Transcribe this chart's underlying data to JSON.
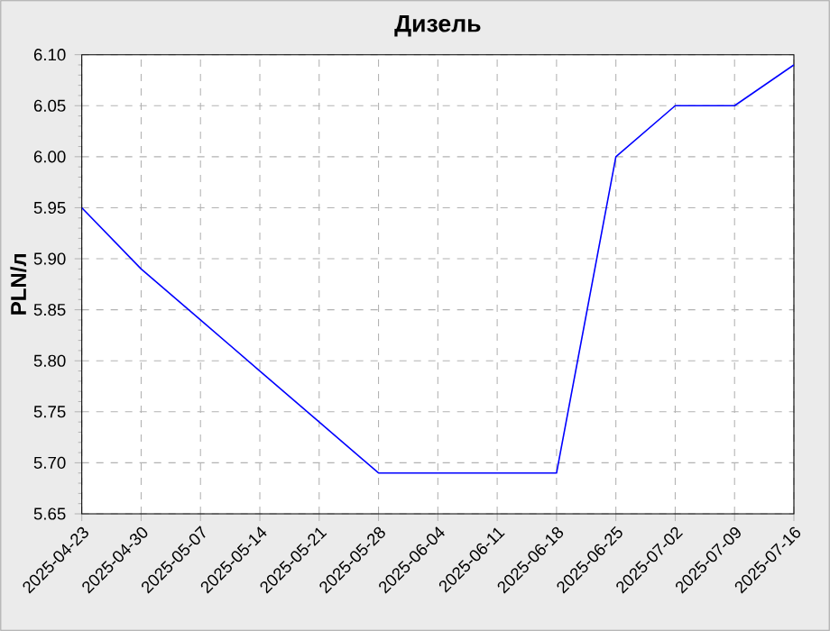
{
  "chart_data": {
    "type": "line",
    "title": "Дизель",
    "ylabel": "PLN/л",
    "x": [
      "2025-04-23",
      "2025-04-30",
      "2025-05-07",
      "2025-05-14",
      "2025-05-21",
      "2025-05-28",
      "2025-06-04",
      "2025-06-11",
      "2025-06-18",
      "2025-06-25",
      "2025-07-02",
      "2025-07-09",
      "2025-07-16"
    ],
    "series": [
      {
        "color": "#0000ff",
        "values": [
          5.95,
          5.89,
          5.84,
          5.79,
          5.74,
          5.69,
          5.69,
          5.69,
          5.69,
          6.0,
          6.05,
          6.05,
          6.09
        ]
      }
    ],
    "xlim": [
      "2025-04-23",
      "2025-07-16"
    ],
    "xticks": [
      "2025-04-23",
      "2025-04-30",
      "2025-05-07",
      "2025-05-14",
      "2025-05-21",
      "2025-05-28",
      "2025-06-04",
      "2025-06-11",
      "2025-06-18",
      "2025-06-25",
      "2025-07-02",
      "2025-07-09",
      "2025-07-16"
    ],
    "ylim": [
      5.65,
      6.1
    ],
    "yticks": [
      {
        "value": 5.65,
        "label": "5.65"
      },
      {
        "value": 5.7,
        "label": "5.70"
      },
      {
        "value": 5.75,
        "label": "5.75"
      },
      {
        "value": 5.8,
        "label": "5.80"
      },
      {
        "value": 5.85,
        "label": "5.85"
      },
      {
        "value": 5.9,
        "label": "5.90"
      },
      {
        "value": 5.95,
        "label": "5.95"
      },
      {
        "value": 6.0,
        "label": "6.00"
      },
      {
        "value": 6.05,
        "label": "6.05"
      },
      {
        "value": 6.1,
        "label": "6.10"
      }
    ],
    "grid": true,
    "marker": "none",
    "line_style": "solid"
  }
}
